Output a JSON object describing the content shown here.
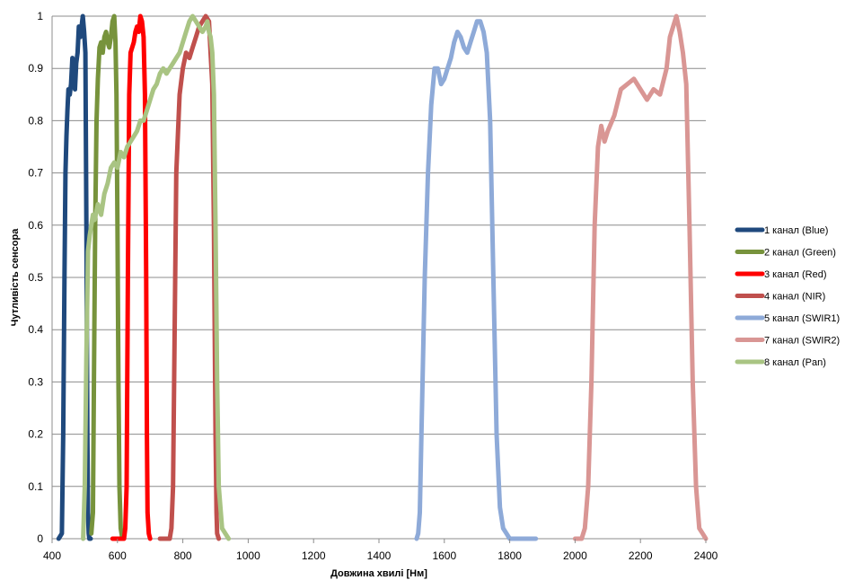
{
  "top_text": "",
  "chart_data": {
    "type": "line",
    "title": "",
    "xlabel": "Довжина хвилі [Нм]",
    "ylabel": "Чутливість сенсора",
    "xlim": [
      400,
      2400
    ],
    "ylim": [
      0,
      1
    ],
    "x_ticks": [
      400,
      600,
      800,
      1000,
      1200,
      1400,
      1600,
      1800,
      2000,
      2200,
      2400
    ],
    "y_ticks": [
      0,
      0.1,
      0.2,
      0.3,
      0.4,
      0.5,
      0.6,
      0.7,
      0.8,
      0.9,
      1
    ],
    "grid": "horizontal",
    "legend_position": "right",
    "series": [
      {
        "name": "1 канал (Blue)",
        "color": "#1f497d",
        "x": [
          420,
          430,
          434,
          438,
          441,
          444,
          447,
          450,
          454,
          458,
          462,
          466,
          470,
          474,
          478,
          482,
          486,
          490,
          494,
          498,
          502,
          505,
          508,
          510,
          512,
          514,
          518
        ],
        "y": [
          0,
          0.01,
          0.2,
          0.5,
          0.7,
          0.77,
          0.82,
          0.86,
          0.85,
          0.87,
          0.92,
          0.9,
          0.86,
          0.91,
          0.93,
          0.98,
          0.96,
          0.98,
          1.0,
          0.97,
          0.93,
          0.6,
          0.2,
          0.05,
          0.01,
          0,
          0
        ]
      },
      {
        "name": "2 канал (Green)",
        "color": "#77933c",
        "x": [
          520,
          525,
          528,
          532,
          536,
          540,
          545,
          550,
          555,
          560,
          565,
          570,
          575,
          580,
          585,
          590,
          594,
          597,
          600,
          603,
          606,
          610,
          615
        ],
        "y": [
          0.01,
          0.05,
          0.3,
          0.6,
          0.8,
          0.88,
          0.94,
          0.95,
          0.93,
          0.96,
          0.97,
          0.95,
          0.94,
          0.96,
          0.99,
          1.0,
          0.95,
          0.85,
          0.6,
          0.3,
          0.1,
          0.02,
          0
        ]
      },
      {
        "name": "3 канал (Red)",
        "color": "#ff0000",
        "x": [
          585,
          620,
          624,
          628,
          632,
          636,
          640,
          645,
          650,
          655,
          660,
          665,
          670,
          675,
          680,
          684,
          688,
          690,
          692,
          696,
          700
        ],
        "y": [
          0,
          0,
          0.02,
          0.1,
          0.5,
          0.85,
          0.93,
          0.94,
          0.95,
          0.97,
          0.98,
          0.97,
          1.0,
          0.99,
          0.96,
          0.85,
          0.5,
          0.2,
          0.05,
          0.01,
          0
        ]
      },
      {
        "name": "4 канал (NIR)",
        "color": "#c0504d",
        "x": [
          730,
          760,
          765,
          770,
          775,
          780,
          790,
          800,
          810,
          820,
          830,
          840,
          850,
          860,
          870,
          880,
          885,
          890,
          895,
          900,
          903,
          905,
          910
        ],
        "y": [
          0,
          0,
          0.02,
          0.1,
          0.4,
          0.7,
          0.85,
          0.9,
          0.93,
          0.92,
          0.94,
          0.96,
          0.98,
          0.99,
          1.0,
          0.99,
          0.93,
          0.87,
          0.6,
          0.2,
          0.05,
          0.01,
          0
        ]
      },
      {
        "name": "5 канал (SWIR1)",
        "color": "#8eaad8",
        "x": [
          1515,
          1520,
          1525,
          1530,
          1540,
          1550,
          1560,
          1570,
          1580,
          1590,
          1600,
          1610,
          1620,
          1630,
          1640,
          1650,
          1660,
          1670,
          1680,
          1690,
          1700,
          1710,
          1720,
          1730,
          1740,
          1750,
          1760,
          1770,
          1780,
          1790,
          1800,
          1880
        ],
        "y": [
          0,
          0.01,
          0.05,
          0.2,
          0.5,
          0.7,
          0.83,
          0.9,
          0.9,
          0.87,
          0.88,
          0.9,
          0.92,
          0.95,
          0.97,
          0.96,
          0.94,
          0.93,
          0.95,
          0.97,
          0.99,
          0.99,
          0.97,
          0.93,
          0.8,
          0.5,
          0.2,
          0.06,
          0.02,
          0.01,
          0,
          0
        ]
      },
      {
        "name": "7 канал (SWIR2)",
        "color": "#d99694",
        "x": [
          2000,
          2020,
          2030,
          2040,
          2050,
          2060,
          2070,
          2080,
          2090,
          2100,
          2120,
          2140,
          2160,
          2180,
          2200,
          2220,
          2240,
          2260,
          2280,
          2290,
          2300,
          2310,
          2320,
          2330,
          2340,
          2350,
          2360,
          2370,
          2380,
          2390,
          2400
        ],
        "y": [
          0,
          0,
          0.02,
          0.1,
          0.3,
          0.6,
          0.75,
          0.79,
          0.76,
          0.78,
          0.81,
          0.86,
          0.87,
          0.88,
          0.86,
          0.84,
          0.86,
          0.85,
          0.9,
          0.96,
          0.98,
          1.0,
          0.97,
          0.93,
          0.87,
          0.6,
          0.3,
          0.1,
          0.02,
          0.01,
          0
        ]
      },
      {
        "name": "8 канал (Pan)",
        "color": "#a9c483",
        "x": [
          495,
          500,
          505,
          510,
          515,
          520,
          525,
          530,
          540,
          550,
          560,
          570,
          580,
          590,
          600,
          610,
          620,
          630,
          640,
          650,
          660,
          670,
          680,
          690,
          700,
          710,
          720,
          730,
          740,
          750,
          760,
          770,
          780,
          790,
          800,
          810,
          820,
          830,
          840,
          850,
          860,
          870,
          875,
          880,
          885,
          890,
          895,
          900,
          905,
          910,
          920,
          930,
          940
        ],
        "y": [
          0,
          0.1,
          0.35,
          0.55,
          0.58,
          0.6,
          0.62,
          0.61,
          0.64,
          0.62,
          0.66,
          0.68,
          0.71,
          0.72,
          0.71,
          0.74,
          0.73,
          0.75,
          0.76,
          0.77,
          0.78,
          0.8,
          0.8,
          0.82,
          0.84,
          0.86,
          0.87,
          0.89,
          0.9,
          0.89,
          0.9,
          0.91,
          0.92,
          0.93,
          0.95,
          0.97,
          0.99,
          1.0,
          0.99,
          0.98,
          0.97,
          0.98,
          0.99,
          0.97,
          0.96,
          0.93,
          0.85,
          0.6,
          0.3,
          0.1,
          0.02,
          0.01,
          0
        ]
      }
    ]
  }
}
